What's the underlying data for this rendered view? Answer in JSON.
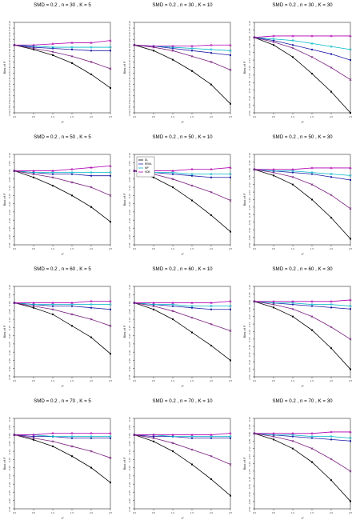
{
  "chart_data": [
    {
      "type": "line",
      "title": "SMD = 0.2 , n = 30 , K = 5",
      "xlabel": "τ²",
      "ylabel": "Bias of I²",
      "x": [
        0,
        0.5,
        1,
        1.5,
        2,
        2.5
      ],
      "xlim": [
        0,
        2.5
      ],
      "ylim": [
        -0.6,
        0.2
      ],
      "grid": false,
      "series": [
        {
          "name": "DL",
          "color": "#000000",
          "values": [
            0,
            -0.04,
            -0.09,
            -0.16,
            -0.26,
            -0.38
          ]
        },
        {
          "name": "REML",
          "color": "#1a1aa6",
          "values": [
            0,
            -0.02,
            -0.03,
            -0.04,
            -0.05,
            -0.05
          ]
        },
        {
          "name": "MP",
          "color": "#00b8c8",
          "values": [
            0,
            -0.01,
            -0.02,
            -0.02,
            -0.02,
            -0.02
          ]
        },
        {
          "name": "KDB",
          "color": "#b000b0",
          "values": [
            0,
            0,
            0.01,
            0.02,
            0.02,
            0.04
          ]
        },
        {
          "name": "",
          "color": "#7a2080",
          "values": [
            0,
            -0.03,
            -0.06,
            -0.1,
            -0.15,
            -0.21
          ]
        }
      ]
    },
    {
      "type": "line",
      "title": "SMD = 0.2 , n = 30 , K = 10",
      "xlabel": "τ²",
      "ylabel": "Bias of I²",
      "x": [
        0,
        0.5,
        1,
        1.5,
        2,
        2.5
      ],
      "xlim": [
        0,
        2.5
      ],
      "ylim": [
        -0.6,
        0.2
      ],
      "grid": false,
      "series": [
        {
          "name": "DL",
          "color": "#000000",
          "values": [
            0,
            -0.05,
            -0.13,
            -0.23,
            -0.35,
            -0.52
          ]
        },
        {
          "name": "REML",
          "color": "#1a1aa6",
          "values": [
            0,
            -0.01,
            -0.03,
            -0.05,
            -0.07,
            -0.09
          ]
        },
        {
          "name": "MP",
          "color": "#00b8c8",
          "values": [
            0,
            -0.01,
            -0.02,
            -0.03,
            -0.04,
            -0.05
          ]
        },
        {
          "name": "KDB",
          "color": "#b000b0",
          "values": [
            0,
            -0.01,
            -0.01,
            -0.01,
            0,
            0
          ]
        },
        {
          "name": "",
          "color": "#7a2080",
          "values": [
            0,
            -0.02,
            -0.05,
            -0.1,
            -0.15,
            -0.22
          ]
        }
      ]
    },
    {
      "type": "line",
      "title": "SMD = 0.2 , n = 30 , K = 30",
      "xlabel": "τ²",
      "ylabel": "Bias of I²",
      "x": [
        0,
        0.5,
        1,
        1.5,
        2,
        2.5
      ],
      "xlim": [
        0,
        2.5
      ],
      "ylim": [
        -0.5,
        0.1
      ],
      "grid": false,
      "series": [
        {
          "name": "DL",
          "color": "#000000",
          "values": [
            0,
            -0.05,
            -0.13,
            -0.24,
            -0.36,
            -0.5
          ]
        },
        {
          "name": "REML",
          "color": "#1a1aa6",
          "values": [
            0,
            -0.02,
            -0.05,
            -0.08,
            -0.11,
            -0.15
          ]
        },
        {
          "name": "MP",
          "color": "#00b8c8",
          "values": [
            0,
            -0.01,
            -0.02,
            -0.04,
            -0.06,
            -0.08
          ]
        },
        {
          "name": "KDB",
          "color": "#b000b0",
          "values": [
            0,
            0.01,
            0.01,
            0.01,
            0.01,
            0.01
          ]
        },
        {
          "name": "",
          "color": "#7a2080",
          "values": [
            0,
            -0.03,
            -0.07,
            -0.13,
            -0.2,
            -0.28
          ]
        }
      ]
    },
    {
      "type": "line",
      "title": "SMD = 0.2 , n = 50 , K = 5",
      "xlabel": "τ²",
      "ylabel": "Bias of I²",
      "x": [
        0,
        0.5,
        1,
        1.5,
        2,
        2.5
      ],
      "xlim": [
        0,
        2.5
      ],
      "ylim": [
        -0.45,
        0.1
      ],
      "grid": false,
      "series": [
        {
          "name": "DL",
          "color": "#000000",
          "values": [
            0,
            -0.04,
            -0.09,
            -0.15,
            -0.22,
            -0.31
          ]
        },
        {
          "name": "REML",
          "color": "#1a1aa6",
          "values": [
            0,
            -0.01,
            -0.02,
            -0.02,
            -0.03,
            -0.03
          ]
        },
        {
          "name": "MP",
          "color": "#00b8c8",
          "values": [
            0,
            -0.01,
            -0.01,
            -0.01,
            -0.01,
            -0.01
          ]
        },
        {
          "name": "KDB",
          "color": "#b000b0",
          "values": [
            0,
            0,
            0,
            0.01,
            0.02,
            0.03
          ]
        },
        {
          "name": "",
          "color": "#7a2080",
          "values": [
            0,
            -0.02,
            -0.04,
            -0.07,
            -0.1,
            -0.15
          ]
        }
      ]
    },
    {
      "type": "line",
      "title": "SMD = 0.2 , n = 50 , K = 10",
      "xlabel": "τ²",
      "ylabel": "Bias of I²",
      "x": [
        0,
        0.5,
        1,
        1.5,
        2,
        2.5
      ],
      "xlim": [
        0,
        2.5
      ],
      "ylim": [
        -0.45,
        0.1
      ],
      "grid": false,
      "legend_position": "top-left",
      "series": [
        {
          "name": "DL",
          "color": "#000000",
          "values": [
            0,
            -0.04,
            -0.1,
            -0.18,
            -0.27,
            -0.37
          ]
        },
        {
          "name": "REML",
          "color": "#1a1aa6",
          "values": [
            0,
            -0.01,
            -0.02,
            -0.03,
            -0.04,
            -0.04
          ]
        },
        {
          "name": "MP",
          "color": "#00b8c8",
          "values": [
            0,
            -0.01,
            -0.01,
            -0.02,
            -0.02,
            -0.02
          ]
        },
        {
          "name": "KDB",
          "color": "#b000b0",
          "values": [
            0,
            0,
            0,
            0.01,
            0.01,
            0.02
          ]
        },
        {
          "name": "",
          "color": "#7a2080",
          "values": [
            0,
            -0.02,
            -0.05,
            -0.09,
            -0.13,
            -0.18
          ]
        }
      ]
    },
    {
      "type": "line",
      "title": "SMD = 0.2 , n = 50 , K = 30",
      "xlabel": "τ²",
      "ylabel": "Bias of I²",
      "x": [
        0,
        0.5,
        1,
        1.5,
        2,
        2.5
      ],
      "xlim": [
        0,
        2.5
      ],
      "ylim": [
        -0.5,
        0.1
      ],
      "grid": false,
      "series": [
        {
          "name": "DL",
          "color": "#000000",
          "values": [
            0,
            -0.04,
            -0.1,
            -0.2,
            -0.32,
            -0.46
          ]
        },
        {
          "name": "REML",
          "color": "#1a1aa6",
          "values": [
            0,
            -0.01,
            -0.02,
            -0.03,
            -0.05,
            -0.07
          ]
        },
        {
          "name": "MP",
          "color": "#00b8c8",
          "values": [
            0,
            -0.01,
            -0.01,
            -0.02,
            -0.03,
            -0.04
          ]
        },
        {
          "name": "KDB",
          "color": "#b000b0",
          "values": [
            0,
            0,
            0,
            0.01,
            0.01,
            0.01
          ]
        },
        {
          "name": "",
          "color": "#7a2080",
          "values": [
            0,
            -0.02,
            -0.05,
            -0.1,
            -0.17,
            -0.26
          ]
        }
      ]
    },
    {
      "type": "line",
      "title": "SMD = 0.2 , n = 60 , K = 5",
      "xlabel": "τ²",
      "ylabel": "Bias of I²",
      "x": [
        0,
        0.5,
        1,
        1.5,
        2,
        2.5
      ],
      "xlim": [
        0,
        2.5
      ],
      "ylim": [
        -0.45,
        0.1
      ],
      "grid": false,
      "series": [
        {
          "name": "DL",
          "color": "#000000",
          "values": [
            0,
            -0.03,
            -0.07,
            -0.14,
            -0.21,
            -0.31
          ]
        },
        {
          "name": "REML",
          "color": "#1a1aa6",
          "values": [
            0,
            -0.01,
            -0.02,
            -0.02,
            -0.03,
            -0.04
          ]
        },
        {
          "name": "MP",
          "color": "#00b8c8",
          "values": [
            0,
            -0.01,
            -0.01,
            -0.01,
            -0.01,
            -0.01
          ]
        },
        {
          "name": "KDB",
          "color": "#b000b0",
          "values": [
            0,
            0,
            0,
            0,
            0.01,
            0.01
          ]
        },
        {
          "name": "",
          "color": "#7a2080",
          "values": [
            0,
            -0.02,
            -0.04,
            -0.07,
            -0.1,
            -0.14
          ]
        }
      ]
    },
    {
      "type": "line",
      "title": "SMD = 0.2 , n = 60 , K = 10",
      "xlabel": "τ²",
      "ylabel": "Bias of I²",
      "x": [
        0,
        0.5,
        1,
        1.5,
        2,
        2.5
      ],
      "xlim": [
        0,
        2.5
      ],
      "ylim": [
        -0.45,
        0.1
      ],
      "grid": false,
      "series": [
        {
          "name": "DL",
          "color": "#000000",
          "values": [
            0,
            -0.04,
            -0.1,
            -0.18,
            -0.26,
            -0.35
          ]
        },
        {
          "name": "REML",
          "color": "#1a1aa6",
          "values": [
            0,
            -0.01,
            -0.02,
            -0.03,
            -0.04,
            -0.04
          ]
        },
        {
          "name": "MP",
          "color": "#00b8c8",
          "values": [
            0,
            -0.01,
            -0.01,
            -0.02,
            -0.02,
            -0.02
          ]
        },
        {
          "name": "KDB",
          "color": "#b000b0",
          "values": [
            0,
            0,
            0,
            0,
            0,
            0.01
          ]
        },
        {
          "name": "",
          "color": "#7a2080",
          "values": [
            0,
            -0.02,
            -0.05,
            -0.09,
            -0.13,
            -0.17
          ]
        }
      ]
    },
    {
      "type": "line",
      "title": "SMD = 0.2 , n = 60 , K = 30",
      "xlabel": "τ²",
      "ylabel": "Bias of I²",
      "x": [
        0,
        0.5,
        1,
        1.5,
        2,
        2.5
      ],
      "xlim": [
        0,
        2.5
      ],
      "ylim": [
        -0.5,
        0.1
      ],
      "grid": false,
      "series": [
        {
          "name": "DL",
          "color": "#000000",
          "values": [
            0,
            -0.04,
            -0.1,
            -0.19,
            -0.31,
            -0.45
          ]
        },
        {
          "name": "REML",
          "color": "#1a1aa6",
          "values": [
            0,
            -0.01,
            -0.02,
            -0.03,
            -0.04,
            -0.05
          ]
        },
        {
          "name": "MP",
          "color": "#00b8c8",
          "values": [
            0,
            -0.01,
            -0.01,
            -0.02,
            -0.02,
            -0.03
          ]
        },
        {
          "name": "KDB",
          "color": "#b000b0",
          "values": [
            0,
            0,
            0,
            0,
            0,
            0.01
          ]
        },
        {
          "name": "",
          "color": "#7a2080",
          "values": [
            0,
            -0.02,
            -0.05,
            -0.1,
            -0.17,
            -0.25
          ]
        }
      ]
    },
    {
      "type": "line",
      "title": "SMD = 0.2 , n = 70 , K = 5",
      "xlabel": "τ²",
      "ylabel": "Bias of I²",
      "x": [
        0,
        0.5,
        1,
        1.5,
        2,
        2.5
      ],
      "xlim": [
        0,
        2.5
      ],
      "ylim": [
        -0.45,
        0.1
      ],
      "grid": false,
      "series": [
        {
          "name": "DL",
          "color": "#000000",
          "values": [
            0,
            -0.03,
            -0.07,
            -0.13,
            -0.2,
            -0.29
          ]
        },
        {
          "name": "REML",
          "color": "#1a1aa6",
          "values": [
            0,
            -0.01,
            -0.01,
            -0.02,
            -0.02,
            -0.02
          ]
        },
        {
          "name": "MP",
          "color": "#00b8c8",
          "values": [
            0,
            0,
            -0.01,
            -0.01,
            -0.01,
            -0.01
          ]
        },
        {
          "name": "KDB",
          "color": "#b000b0",
          "values": [
            0,
            0,
            0.01,
            0.01,
            0.01,
            0.01
          ]
        },
        {
          "name": "",
          "color": "#7a2080",
          "values": [
            0,
            -0.02,
            -0.04,
            -0.07,
            -0.1,
            -0.14
          ]
        }
      ]
    },
    {
      "type": "line",
      "title": "SMD = 0.2 , n = 70 , K = 10",
      "xlabel": "τ²",
      "ylabel": "Bias of I²",
      "x": [
        0,
        0.5,
        1,
        1.5,
        2,
        2.5
      ],
      "xlim": [
        0,
        2.5
      ],
      "ylim": [
        -0.45,
        0.1
      ],
      "grid": false,
      "series": [
        {
          "name": "DL",
          "color": "#000000",
          "values": [
            0,
            -0.04,
            -0.1,
            -0.18,
            -0.27,
            -0.37
          ]
        },
        {
          "name": "REML",
          "color": "#1a1aa6",
          "values": [
            0,
            -0.01,
            -0.01,
            -0.02,
            -0.02,
            -0.02
          ]
        },
        {
          "name": "MP",
          "color": "#00b8c8",
          "values": [
            0,
            0,
            -0.01,
            -0.01,
            -0.01,
            -0.01
          ]
        },
        {
          "name": "KDB",
          "color": "#b000b0",
          "values": [
            0,
            0,
            0,
            0,
            0,
            0.01
          ]
        },
        {
          "name": "",
          "color": "#7a2080",
          "values": [
            0,
            -0.02,
            -0.05,
            -0.09,
            -0.13,
            -0.18
          ]
        }
      ]
    },
    {
      "type": "line",
      "title": "SMD = 0.2 , n = 70 , K = 30",
      "xlabel": "τ²",
      "ylabel": "Bias of I²",
      "x": [
        0,
        0.5,
        1,
        1.5,
        2,
        2.5
      ],
      "xlim": [
        0,
        2.5
      ],
      "ylim": [
        -0.5,
        0.1
      ],
      "grid": false,
      "series": [
        {
          "name": "DL",
          "color": "#000000",
          "values": [
            0,
            -0.04,
            -0.1,
            -0.19,
            -0.31,
            -0.45
          ]
        },
        {
          "name": "REML",
          "color": "#1a1aa6",
          "values": [
            0,
            -0.01,
            -0.02,
            -0.03,
            -0.04,
            -0.05
          ]
        },
        {
          "name": "MP",
          "color": "#00b8c8",
          "values": [
            0,
            -0.01,
            -0.01,
            -0.02,
            -0.02,
            -0.03
          ]
        },
        {
          "name": "KDB",
          "color": "#b000b0",
          "values": [
            0,
            0,
            0,
            0,
            0.01,
            0.01
          ]
        },
        {
          "name": "",
          "color": "#7a2080",
          "values": [
            0,
            -0.02,
            -0.05,
            -0.1,
            -0.17,
            -0.25
          ]
        }
      ]
    }
  ]
}
